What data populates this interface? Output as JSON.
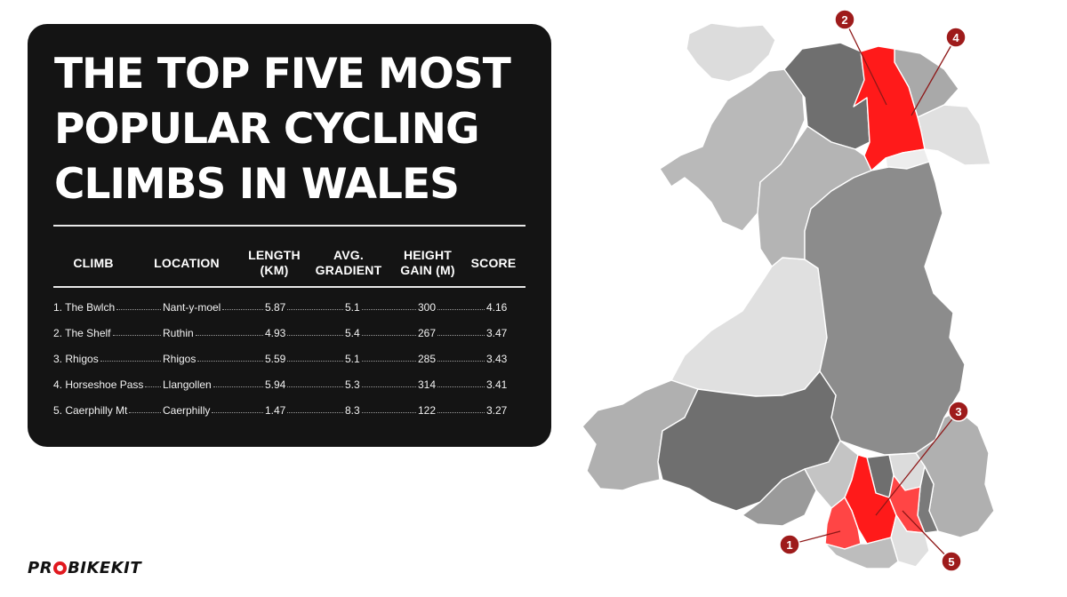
{
  "title_lines": [
    "THE TOP FIVE MOST",
    "POPULAR CYCLING",
    "CLIMBS IN WALES"
  ],
  "table": {
    "headers": {
      "climb": "CLIMB",
      "location": "LOCATION",
      "length_1": "LENGTH",
      "length_2": "(KM)",
      "gradient_1": "AVG.",
      "gradient_2": "GRADIENT",
      "height_1": "HEIGHT",
      "height_2": "GAIN (M)",
      "score": "SCORE"
    },
    "rows": [
      {
        "climb": "1. The Bwlch",
        "location": "Nant-y-moel",
        "length": "5.87",
        "gradient": "5.1",
        "height": "300",
        "score": "4.16"
      },
      {
        "climb": "2. The Shelf",
        "location": "Ruthin",
        "length": "4.93",
        "gradient": "5.4",
        "height": "267",
        "score": "3.47"
      },
      {
        "climb": "3. Rhigos",
        "location": "Rhigos",
        "length": "5.59",
        "gradient": "5.1",
        "height": "285",
        "score": "3.43"
      },
      {
        "climb": "4. Horseshoe Pass",
        "location": "Llangollen",
        "length": "5.94",
        "gradient": "5.3",
        "height": "314",
        "score": "3.41"
      },
      {
        "climb": "5. Caerphilly Mt",
        "location": "Caerphilly",
        "length": "1.47",
        "gradient": "8.3",
        "height": "122",
        "score": "3.27"
      }
    ]
  },
  "map_markers": [
    "1",
    "2",
    "3",
    "4",
    "5"
  ],
  "brand": {
    "pre": "PR",
    "post": "BIKEKIT"
  },
  "colors": {
    "card": "#141414",
    "highlight": "#ff1a1a",
    "highlight_light": "#ff4545",
    "marker": "#9e1b1b"
  }
}
